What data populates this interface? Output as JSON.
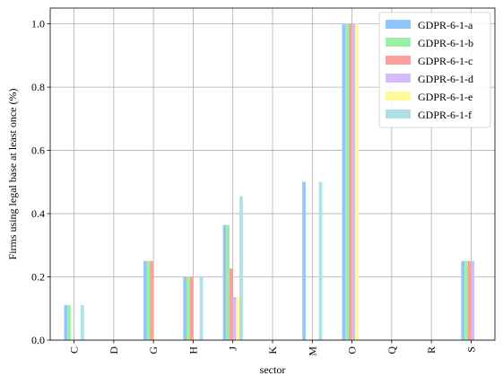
{
  "chart_data": {
    "type": "bar",
    "title": "",
    "xlabel": "sector",
    "ylabel": "Firms using legal base at least once (%)",
    "categories": [
      "C",
      "D",
      "G",
      "H",
      "J",
      "K",
      "M",
      "O",
      "Q",
      "R",
      "S"
    ],
    "ylim": [
      0,
      1.05
    ],
    "yticks": [
      "0.0",
      "0.2",
      "0.4",
      "0.6",
      "0.8",
      "1.0"
    ],
    "grid": true,
    "legend_position": "top-right",
    "series": [
      {
        "name": "GDPR-6-1-a",
        "color": "#92c5f9",
        "values": [
          0.111,
          0,
          0.25,
          0.2,
          0.364,
          0,
          0.5,
          1.0,
          0,
          0,
          0.25
        ]
      },
      {
        "name": "GDPR-6-1-b",
        "color": "#9cf0a5",
        "values": [
          0.111,
          0,
          0.25,
          0.2,
          0.364,
          0,
          0,
          1.0,
          0,
          0,
          0.25
        ]
      },
      {
        "name": "GDPR-6-1-c",
        "color": "#f9a19a",
        "values": [
          0,
          0,
          0.25,
          0.2,
          0.227,
          0,
          0,
          1.0,
          0,
          0,
          0.25
        ]
      },
      {
        "name": "GDPR-6-1-d",
        "color": "#d2bdf9",
        "values": [
          0,
          0,
          0,
          0,
          0.136,
          0,
          0,
          1.0,
          0,
          0,
          0.25
        ]
      },
      {
        "name": "GDPR-6-1-e",
        "color": "#fffb9d",
        "values": [
          0,
          0,
          0,
          0,
          0.136,
          0,
          0,
          1.0,
          0,
          0,
          0
        ]
      },
      {
        "name": "GDPR-6-1-f",
        "color": "#addfe3",
        "values": [
          0.111,
          0,
          0,
          0.2,
          0.455,
          0,
          0.5,
          0,
          0,
          0,
          0
        ]
      }
    ]
  }
}
